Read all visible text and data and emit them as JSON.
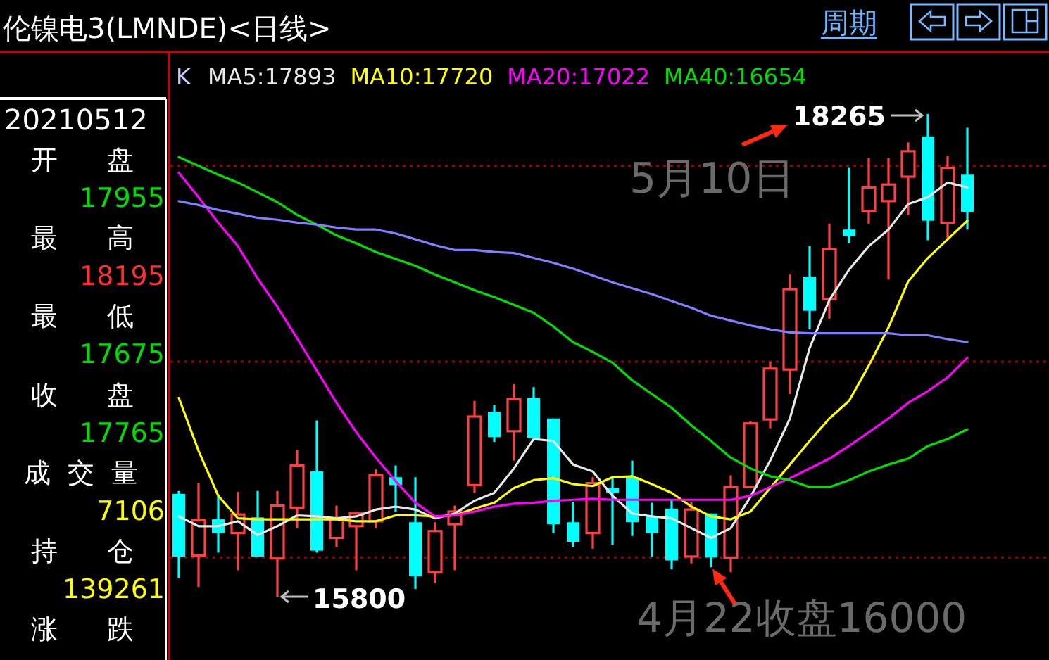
{
  "chart_data": [
    {
      "type": "candlestick",
      "title": "伦镍电3(LMNDE)<日线>",
      "legend_title": "K",
      "legend": "top left",
      "categories": [
        null,
        null,
        null,
        null,
        null,
        null,
        null,
        null,
        null,
        null,
        null,
        null,
        null,
        null,
        null,
        null,
        null,
        null,
        null,
        null,
        null,
        null,
        null,
        null,
        null,
        null,
        null,
        null,
        null,
        null,
        null,
        null,
        null,
        null,
        null,
        null,
        null,
        null,
        null,
        null,
        null
      ],
      "ohlc": [
        [
          16325,
          16340,
          15895,
          16005
        ],
        [
          16010,
          16380,
          15850,
          16190
        ],
        [
          16195,
          16320,
          16025,
          16125
        ],
        [
          16125,
          16335,
          15935,
          16220
        ],
        [
          16205,
          16340,
          16005,
          16005
        ],
        [
          15995,
          16340,
          15800,
          16265
        ],
        [
          16255,
          16550,
          16150,
          16470
        ],
        [
          16440,
          16700,
          16025,
          16035
        ],
        [
          16100,
          16265,
          16055,
          16200
        ],
        [
          16160,
          16235,
          15935,
          16225
        ],
        [
          16185,
          16450,
          16150,
          16420
        ],
        [
          16410,
          16470,
          16235,
          16370
        ],
        [
          16180,
          16410,
          15840,
          15905
        ],
        [
          15925,
          16180,
          15870,
          16135
        ],
        [
          16170,
          16265,
          15935,
          16235
        ],
        [
          16370,
          16800,
          16330,
          16720
        ],
        [
          16745,
          16780,
          16590,
          16615
        ],
        [
          16645,
          16885,
          16495,
          16810
        ],
        [
          16815,
          16870,
          16610,
          16610
        ],
        [
          16710,
          16710,
          16125,
          16170
        ],
        [
          16180,
          16285,
          16055,
          16080
        ],
        [
          16125,
          16410,
          16045,
          16380
        ],
        [
          16355,
          16415,
          16065,
          16330
        ],
        [
          16410,
          16495,
          16110,
          16180
        ],
        [
          16210,
          16280,
          16005,
          16125
        ],
        [
          16250,
          16295,
          15940,
          15985
        ],
        [
          16005,
          16285,
          15970,
          16245
        ],
        [
          16225,
          16225,
          15950,
          16000
        ],
        [
          16000,
          16420,
          15925,
          16360
        ],
        [
          16360,
          16695,
          16355,
          16685
        ],
        [
          16705,
          17000,
          16660,
          16965
        ],
        [
          16960,
          17445,
          16835,
          17370
        ],
        [
          17435,
          17590,
          17165,
          17260
        ],
        [
          17320,
          17705,
          17220,
          17575
        ],
        [
          17675,
          17990,
          17605,
          17640
        ],
        [
          17770,
          18040,
          17705,
          17890
        ],
        [
          17820,
          18040,
          17420,
          17905
        ],
        [
          17945,
          18120,
          17750,
          18075
        ],
        [
          18150,
          18265,
          17620,
          17720
        ],
        [
          17710,
          18050,
          17625,
          17990
        ],
        [
          17955,
          18195,
          17675,
          17765
        ]
      ],
      "colors": [
        "#00ffff",
        "#ff4040",
        "#00ffff",
        "#ff4040",
        "#00ffff",
        "#ff4040",
        "#ff4040",
        "#00ffff",
        "#ff4040",
        "#ff4040",
        "#ff4040",
        "#00ffff",
        "#00ffff",
        "#ff4040",
        "#ff4040",
        "#ff4040",
        "#00ffff",
        "#ff4040",
        "#00ffff",
        "#00ffff",
        "#00ffff",
        "#ff4040",
        "#00ffff",
        "#00ffff",
        "#00ffff",
        "#00ffff",
        "#ff4040",
        "#00ffff",
        "#ff4040",
        "#ff4040",
        "#ff4040",
        "#ff4040",
        "#00ffff",
        "#ff4040",
        "#00ffff",
        "#ff4040",
        "#ff4040",
        "#ff4040",
        "#00ffff",
        "#ff4040",
        "#00ffff"
      ],
      "series": [
        {
          "name": "MA5:17893",
          "type": "line",
          "color": "#e8e8e8",
          "values": [
            16210,
            16160,
            16160,
            16185,
            16115,
            16160,
            16215,
            16210,
            16200,
            16210,
            16245,
            16260,
            16245,
            16200,
            16225,
            16290,
            16330,
            16455,
            16605,
            16595,
            16475,
            16440,
            16315,
            16225,
            16210,
            16200,
            16150,
            16100,
            16150,
            16310,
            16495,
            16710,
            17070,
            17315,
            17470,
            17590,
            17675,
            17805,
            17840,
            17915,
            17890
          ]
        },
        {
          "name": "MA10:17720",
          "type": "line",
          "color": "#ffff00",
          "values": [
            16815,
            16545,
            16315,
            16200,
            16195,
            16195,
            16195,
            16195,
            16195,
            16185,
            16185,
            16215,
            16215,
            16210,
            16215,
            16250,
            16280,
            16355,
            16395,
            16405,
            16375,
            16365,
            16410,
            16415,
            16375,
            16330,
            16260,
            16210,
            16195,
            16235,
            16355,
            16475,
            16595,
            16710,
            16800,
            16980,
            17175,
            17410,
            17530,
            17625,
            17720
          ]
        },
        {
          "name": "MA20:17022",
          "type": "line",
          "color": "#ff00ff",
          "values": [
            17965,
            17840,
            17710,
            17590,
            17425,
            17280,
            17120,
            16955,
            16790,
            16640,
            16510,
            16390,
            16280,
            16210,
            16215,
            16235,
            16260,
            16275,
            16280,
            16290,
            16295,
            16300,
            16295,
            16295,
            16295,
            16295,
            16295,
            16295,
            16295,
            16315,
            16360,
            16405,
            16455,
            16505,
            16570,
            16640,
            16710,
            16790,
            16850,
            16920,
            17020
          ]
        },
        {
          "name": "MA40:16654",
          "type": "line",
          "color": "#00e000",
          "values": [
            18045,
            18000,
            17955,
            17915,
            17865,
            17815,
            17750,
            17700,
            17645,
            17605,
            17560,
            17525,
            17490,
            17445,
            17405,
            17365,
            17330,
            17290,
            17250,
            17180,
            17100,
            17050,
            16995,
            16905,
            16835,
            16765,
            16675,
            16595,
            16510,
            16455,
            16415,
            16395,
            16360,
            16360,
            16395,
            16440,
            16475,
            16505,
            16570,
            16605,
            16655
          ]
        },
        {
          "type": "line",
          "color": "#7f7fff",
          "values": [
            17820,
            17800,
            17775,
            17755,
            17735,
            17725,
            17710,
            17700,
            17685,
            17675,
            17675,
            17655,
            17625,
            17595,
            17570,
            17570,
            17560,
            17555,
            17530,
            17505,
            17475,
            17440,
            17405,
            17375,
            17345,
            17310,
            17275,
            17235,
            17210,
            17185,
            17165,
            17150,
            17145,
            17145,
            17145,
            17145,
            17145,
            17135,
            17135,
            17115,
            17100
          ]
        }
      ],
      "ref_lines": [
        {
          "axis": "y",
          "value": 16000,
          "color": "#a00000",
          "line_style": "dotted"
        },
        {
          "axis": "y",
          "value": 17000,
          "color": "#a00000",
          "line_style": "dotted"
        },
        {
          "axis": "y",
          "value": 18000,
          "color": "#a00000",
          "line_style": "dotted"
        }
      ],
      "annotations": [
        "周期",
        "18265",
        "15800",
        "5月10日",
        {
          "text": "4月22收盘16000",
          "y": 16000
        }
      ]
    },
    {
      "type": "other",
      "title": "20210512",
      "annotations": [
        "开盘",
        "17955",
        "最高",
        "18195",
        "最低",
        "17675",
        "收盘",
        "17765",
        "成交量",
        "7106",
        "持仓",
        "139261",
        "涨跌"
      ],
      "colors": [
        "#ffffff",
        "#00e000",
        "#ffffff",
        "#ff3030",
        "#ffffff",
        "#00e000",
        "#ffffff",
        "#00e000",
        "#ffffff",
        "#ffff00",
        "#ffffff",
        "#ffff00",
        "#ffffff"
      ]
    }
  ]
}
